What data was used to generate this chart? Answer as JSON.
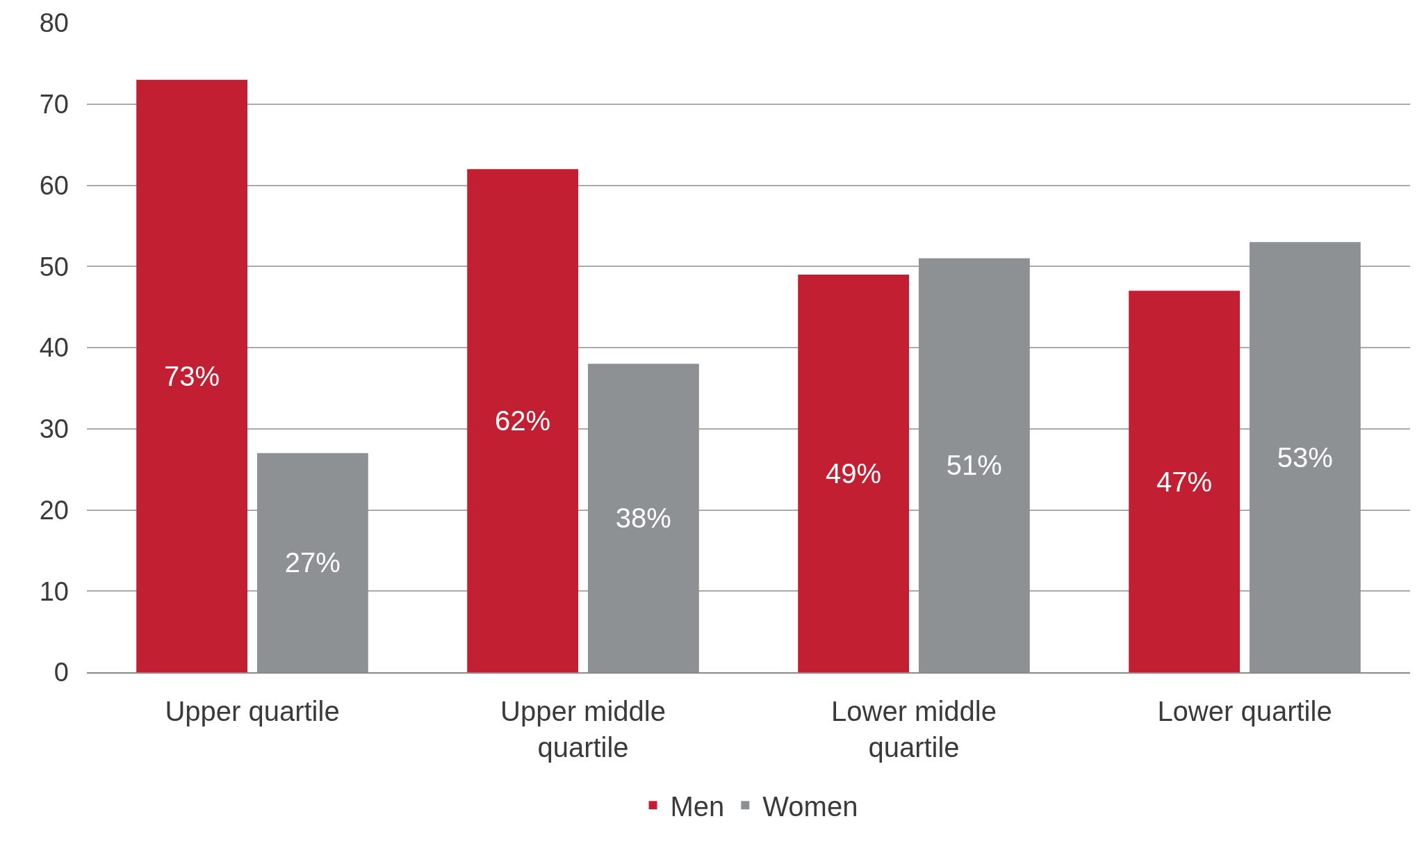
{
  "chart_data": {
    "type": "bar",
    "categories": [
      "Upper quartile",
      "Upper middle quartile",
      "Lower middle quartile",
      "Lower quartile"
    ],
    "series": [
      {
        "name": "Men",
        "color": "#c31f33",
        "values": [
          73,
          62,
          49,
          47
        ],
        "value_labels": [
          "73%",
          "62%",
          "49%",
          "47%"
        ]
      },
      {
        "name": "Women",
        "color": "#8e9194",
        "values": [
          27,
          38,
          51,
          53
        ],
        "value_labels": [
          "27%",
          "38%",
          "51%",
          "53%"
        ]
      }
    ],
    "ylim": [
      0,
      80
    ],
    "yticks": [
      0,
      10,
      20,
      30,
      40,
      50,
      60,
      70,
      80
    ],
    "grid": "y",
    "legend": "bottom"
  }
}
